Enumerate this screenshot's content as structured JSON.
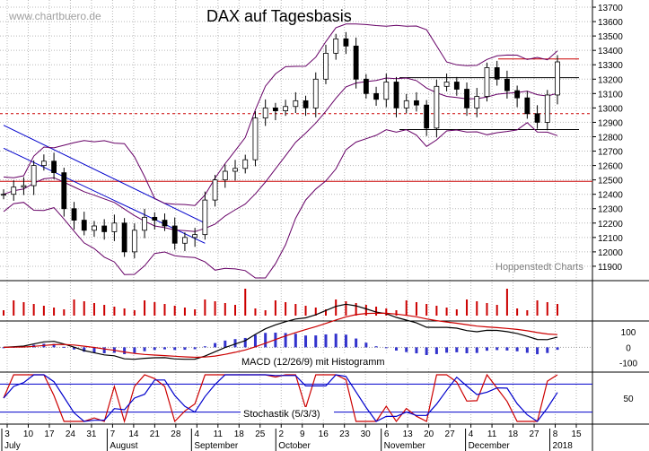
{
  "chart_data": {
    "type": "candlestick",
    "title": "DAX auf Tagesbasis",
    "source_watermark": "www.chartbuero.de",
    "credit": "Hoppenstedt Charts",
    "price_axis": {
      "ylim": [
        11800,
        13750
      ],
      "ticks": [
        11900,
        12000,
        12100,
        12200,
        12300,
        12400,
        12500,
        12600,
        12700,
        12800,
        12900,
        13000,
        13100,
        13200,
        13300,
        13400,
        13500,
        13600,
        13700
      ]
    },
    "macd_axis": {
      "label": "MACD (12/26/9) mit Histogramm",
      "ticks": [
        100,
        0,
        -100
      ],
      "ylim": [
        -160,
        170
      ]
    },
    "stoch_axis": {
      "label": "Stochastik (5/3/3)",
      "ticks": [
        50
      ],
      "ylim": [
        0,
        100
      ],
      "bands": [
        20,
        80
      ]
    },
    "x_tick_labels": [
      "3",
      "10",
      "17",
      "24",
      "31",
      "7",
      "14",
      "21",
      "28",
      "4",
      "11",
      "18",
      "25",
      "2",
      "9",
      "16",
      "23",
      "30",
      "6",
      "13",
      "20",
      "27",
      "4",
      "11",
      "18",
      "27",
      "8",
      "15"
    ],
    "month_labels": [
      "July",
      "August",
      "September",
      "October",
      "November",
      "December",
      "2018"
    ],
    "levels": {
      "red_lines": [
        12490,
        13340
      ],
      "red_dashed": [
        12960
      ],
      "black_lines": [
        13210,
        12850
      ]
    },
    "series": [
      {
        "name": "DAX",
        "values": [
          12400,
          12450,
          12460,
          12600,
          12630,
          12550,
          12300,
          12220,
          12150,
          12180,
          12140,
          12200,
          12000,
          12150,
          12240,
          12220,
          12180,
          12060,
          12100,
          12120,
          12360,
          12500,
          12560,
          12580,
          12640,
          12930,
          13000,
          12980,
          13010,
          13050,
          13000,
          13200,
          13380,
          13480,
          13430,
          13200,
          13100,
          13060,
          13180,
          13000,
          13050,
          13020,
          12860,
          13150,
          13180,
          13130,
          13000,
          13080,
          13280,
          13200,
          13120,
          13070,
          12960,
          12900,
          13090,
          13320
        ]
      }
    ]
  }
}
